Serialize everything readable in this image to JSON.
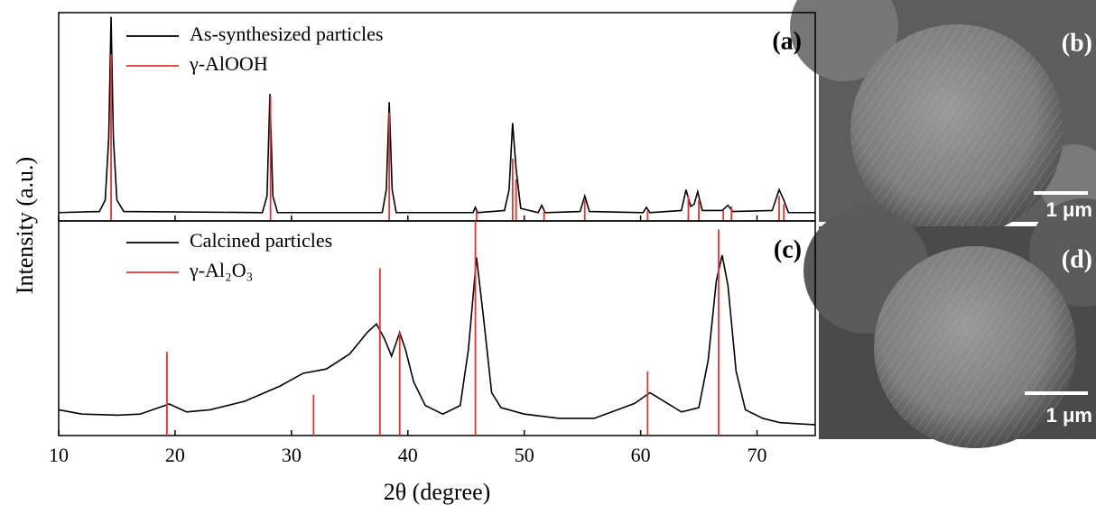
{
  "shared_axes": {
    "xlabel": "2θ (degree)",
    "ylabel": "Intensity (a.u.)"
  },
  "chart_data": [
    {
      "type": "line",
      "label": "(a)",
      "xlim": [
        10,
        75
      ],
      "ylim": [
        0,
        100
      ],
      "series": [
        {
          "name": "As-synthesized particles",
          "color": "#000000",
          "style": "line",
          "x": [
            10,
            13.5,
            14.0,
            14.3,
            14.5,
            14.7,
            15.0,
            15.6,
            27.5,
            27.9,
            28.15,
            28.4,
            28.8,
            37.8,
            38.15,
            38.4,
            38.65,
            39.0,
            45.6,
            45.8,
            46.0,
            48.3,
            48.7,
            49.0,
            49.3,
            49.7,
            51.2,
            51.5,
            51.8,
            54.8,
            55.2,
            55.6,
            60.2,
            60.5,
            60.8,
            63.5,
            63.9,
            64.3,
            64.6,
            64.9,
            65.3,
            67.0,
            67.5,
            67.9,
            71.3,
            71.9,
            72.3,
            72.7,
            75
          ],
          "values": [
            4,
            4.5,
            10,
            40,
            98,
            40,
            10,
            4.5,
            4,
            12,
            61,
            12,
            4,
            4,
            15,
            57,
            15,
            4,
            4,
            6.5,
            4,
            5,
            15,
            47,
            25,
            6,
            4,
            7.5,
            4,
            4.5,
            12,
            4.5,
            4,
            6.5,
            4,
            5,
            15,
            7,
            8,
            14,
            5,
            5,
            7.5,
            4.5,
            5,
            15,
            10,
            4,
            4
          ]
        },
        {
          "name": "γ-AlOOH",
          "color": "#e8322d",
          "style": "sticks",
          "x": [
            14.5,
            28.2,
            38.4,
            45.9,
            49.0,
            49.3,
            51.7,
            55.2,
            60.6,
            64.1,
            65.0,
            67.1,
            67.8,
            71.9,
            72.3
          ],
          "values": [
            80,
            60,
            52,
            5,
            30,
            20,
            5,
            10,
            5,
            12,
            10,
            5,
            7,
            12,
            8
          ]
        }
      ]
    },
    {
      "type": "line",
      "label": "(c)",
      "xlim": [
        10,
        75
      ],
      "ylim": [
        0,
        100
      ],
      "xticks": [
        10,
        20,
        30,
        40,
        50,
        60,
        70
      ],
      "series": [
        {
          "name": "Calcined particles",
          "color": "#000000",
          "style": "line",
          "x": [
            10,
            12,
            15,
            17,
            19.5,
            21,
            23,
            26,
            29,
            31,
            33,
            35,
            36.5,
            37.3,
            38.0,
            38.6,
            39.3,
            39.8,
            40.5,
            41.5,
            43,
            44.5,
            45.2,
            45.9,
            46.5,
            47.2,
            48,
            50,
            53,
            56,
            58,
            59.5,
            60.8,
            62,
            63.5,
            65,
            65.8,
            66.5,
            67,
            67.5,
            68.2,
            69,
            70.5,
            72,
            75
          ],
          "values": [
            12,
            10,
            9.5,
            10,
            14.7,
            11,
            12,
            16,
            23,
            29,
            31,
            38,
            48,
            52,
            45,
            37,
            48,
            40,
            25,
            14,
            10,
            14,
            40,
            83,
            55,
            20,
            13,
            10,
            8,
            8,
            12,
            15,
            20,
            16,
            11,
            13,
            35,
            72,
            84,
            70,
            30,
            12,
            8,
            6,
            5
          ]
        },
        {
          "name": "γ-Al₂O₃",
          "color": "#e8322d",
          "style": "sticks",
          "x": [
            19.3,
            31.9,
            37.6,
            39.3,
            45.8,
            60.6,
            66.7
          ],
          "values": [
            39,
            19,
            78,
            48,
            100,
            30,
            96
          ]
        }
      ]
    }
  ],
  "images": [
    {
      "label": "(b)",
      "scale_bar": "1 μm"
    },
    {
      "label": "(d)",
      "scale_bar": "1 μm"
    }
  ]
}
